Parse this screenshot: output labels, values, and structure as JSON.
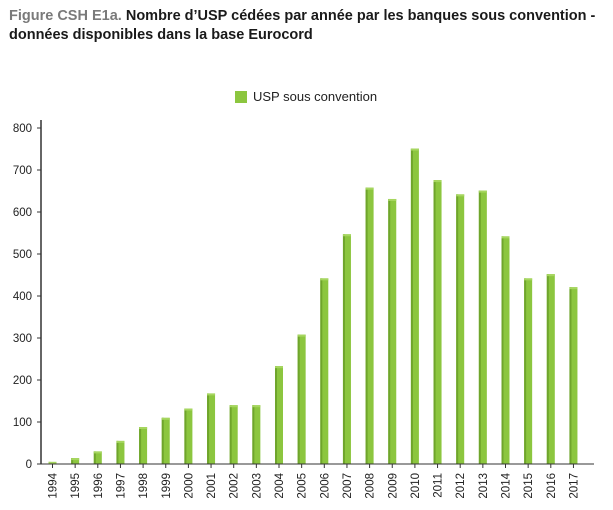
{
  "title": {
    "label": "Figure CSH E1a.",
    "text": "Nombre d’USP cédées par année par les banques sous convention - données disponibles dans la base Eurocord"
  },
  "chart_data": {
    "type": "bar",
    "categories": [
      "1994",
      "1995",
      "1996",
      "1997",
      "1998",
      "1999",
      "2000",
      "2001",
      "2002",
      "2003",
      "2004",
      "2005",
      "2006",
      "2007",
      "2008",
      "2009",
      "2010",
      "2011",
      "2012",
      "2013",
      "2014",
      "2015",
      "2016",
      "2017"
    ],
    "series": [
      {
        "name": "USP sous convention",
        "color": "#8cc63f",
        "values": [
          5,
          14,
          30,
          55,
          88,
          110,
          132,
          168,
          140,
          140,
          233,
          308,
          442,
          547,
          658,
          631,
          751,
          676,
          642,
          651,
          542,
          442,
          452,
          421
        ]
      }
    ],
    "xlabel": "",
    "ylabel": "",
    "ylim": [
      0,
      800
    ],
    "yticks": [
      0,
      100,
      200,
      300,
      400,
      500,
      600,
      700,
      800
    ],
    "grid": false,
    "legend": "top-center"
  }
}
